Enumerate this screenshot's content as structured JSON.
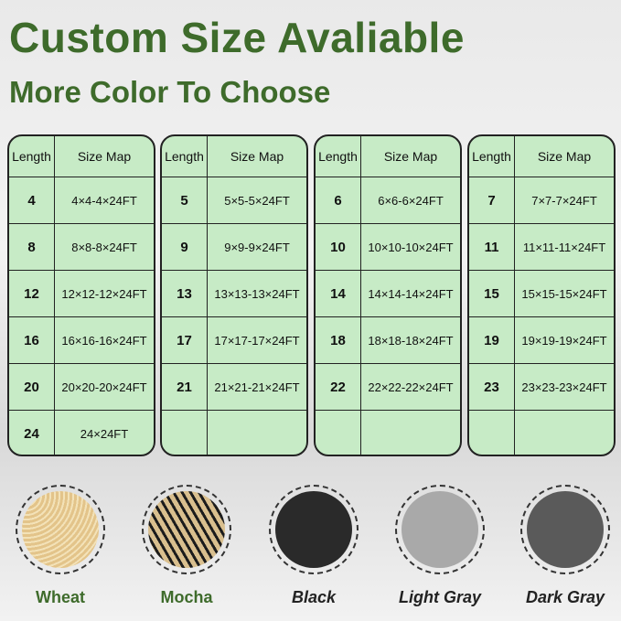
{
  "headline": "Custom Size Avaliable",
  "subheadline": "More Color To Choose",
  "table_headers": {
    "length": "Length",
    "size_map": "Size Map"
  },
  "tables": [
    [
      [
        "4",
        "4×4-4×24FT"
      ],
      [
        "8",
        "8×8-8×24FT"
      ],
      [
        "12",
        "12×12-12×24FT"
      ],
      [
        "16",
        "16×16-16×24FT"
      ],
      [
        "20",
        "20×20-20×24FT"
      ],
      [
        "24",
        "24×24FT"
      ]
    ],
    [
      [
        "5",
        "5×5-5×24FT"
      ],
      [
        "9",
        "9×9-9×24FT"
      ],
      [
        "13",
        "13×13-13×24FT"
      ],
      [
        "17",
        "17×17-17×24FT"
      ],
      [
        "21",
        "21×21-21×24FT"
      ],
      [
        "",
        ""
      ]
    ],
    [
      [
        "6",
        "6×6-6×24FT"
      ],
      [
        "10",
        "10×10-10×24FT"
      ],
      [
        "14",
        "14×14-14×24FT"
      ],
      [
        "18",
        "18×18-18×24FT"
      ],
      [
        "22",
        "22×22-22×24FT"
      ],
      [
        "",
        ""
      ]
    ],
    [
      [
        "7",
        "7×7-7×24FT"
      ],
      [
        "11",
        "11×11-11×24FT"
      ],
      [
        "15",
        "15×15-15×24FT"
      ],
      [
        "19",
        "19×19-19×24FT"
      ],
      [
        "23",
        "23×23-23×24FT"
      ],
      [
        "",
        ""
      ]
    ]
  ],
  "colors": [
    {
      "name": "Wheat",
      "swatch": "#e3c48a",
      "label_color": "#3e6b2b",
      "italic": false
    },
    {
      "name": "Mocha",
      "swatch": "#b99c6c",
      "label_color": "#3e6b2b",
      "italic": false
    },
    {
      "name": "Black",
      "swatch": "#2a2a2a",
      "label_color": "#222222",
      "italic": true
    },
    {
      "name": "Light Gray",
      "swatch": "#a9a9a9",
      "label_color": "#222222",
      "italic": true
    },
    {
      "name": "Dark Gray",
      "swatch": "#5a5a5a",
      "label_color": "#222222",
      "italic": true
    }
  ]
}
